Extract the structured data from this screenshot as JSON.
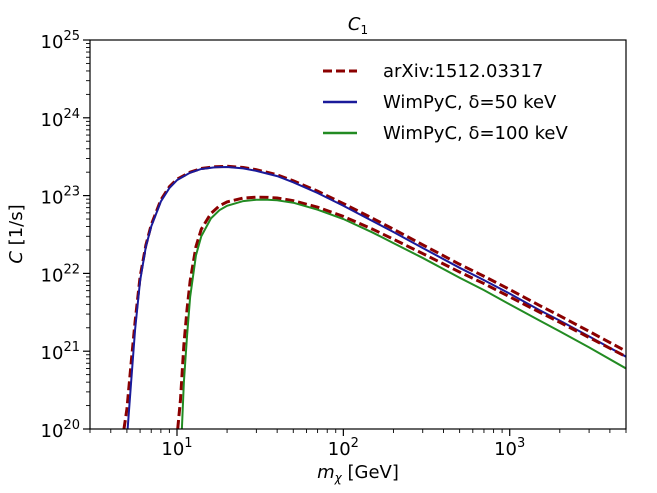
{
  "chart_data": {
    "type": "line",
    "title": "C",
    "title_sub": "1",
    "xlabel_main": "m",
    "xlabel_sub": "χ",
    "xlabel_unit": " [GeV]",
    "ylabel_main": "C",
    "ylabel_unit": " [1/s]",
    "xscale": "log",
    "yscale": "log",
    "xlim": [
      3,
      5000
    ],
    "ylim": [
      1e+20,
      1e+25
    ],
    "legend_position": "top-right",
    "xticks": [
      {
        "value": 10,
        "base": "10",
        "exp": "1"
      },
      {
        "value": 100,
        "base": "10",
        "exp": "2"
      },
      {
        "value": 1000,
        "base": "10",
        "exp": "3"
      }
    ],
    "yticks": [
      {
        "value": 1e+20,
        "base": "10",
        "exp": "20"
      },
      {
        "value": 1e+21,
        "base": "10",
        "exp": "21"
      },
      {
        "value": 1e+22,
        "base": "10",
        "exp": "22"
      },
      {
        "value": 1e+23,
        "base": "10",
        "exp": "23"
      },
      {
        "value": 1e+24,
        "base": "10",
        "exp": "24"
      },
      {
        "value": 1e+25,
        "base": "10",
        "exp": "25"
      }
    ],
    "series": [
      {
        "name": "arXiv:1512.03317 (δ=50 keV)",
        "legend": "arXiv:1512.03317",
        "color": "#8b0000",
        "style": "dashed",
        "x": [
          4.8,
          5.0,
          5.3,
          5.6,
          6.0,
          6.5,
          7.0,
          8.0,
          9.0,
          10,
          12,
          14,
          17,
          20,
          25,
          30,
          40,
          50,
          70,
          100,
          150,
          200,
          300,
          500,
          700,
          1000,
          1500,
          2000,
          3000,
          5000
        ],
        "y": [
          1e+20,
          1.8e+20,
          7e+20,
          2.4e+21,
          9e+21,
          2.3e+22,
          4.2e+22,
          8.8e+22,
          1.3e+23,
          1.62e+23,
          2e+23,
          2.23e+23,
          2.35e+23,
          2.38e+23,
          2.3e+23,
          2.15e+23,
          1.85e+23,
          1.55e+23,
          1.14e+23,
          7.9e+22,
          5.1e+22,
          3.7e+22,
          2.33e+22,
          1.31e+22,
          9.2e+21,
          6.2e+21,
          3.9e+21,
          2.85e+21,
          1.8e+21,
          1e+21
        ]
      },
      {
        "name": "WimPyC, δ=50 keV",
        "legend": "WimPyC, δ=50 keV",
        "color": "#1a1a9a",
        "style": "solid",
        "x": [
          5.05,
          5.3,
          5.6,
          6.0,
          6.5,
          7.0,
          8.0,
          9.0,
          10,
          12,
          14,
          17,
          20,
          25,
          30,
          40,
          50,
          70,
          100,
          150,
          200,
          300,
          500,
          700,
          1000,
          1500,
          2000,
          3000,
          5000
        ],
        "y": [
          1e+20,
          4e+20,
          1.9e+21,
          8e+21,
          2.2e+22,
          4e+22,
          8.4e+22,
          1.25e+23,
          1.58e+23,
          1.97e+23,
          2.2e+23,
          2.31e+23,
          2.33e+23,
          2.24e+23,
          2.08e+23,
          1.78e+23,
          1.48e+23,
          1.08e+23,
          7.4e+22,
          4.7e+22,
          3.4e+22,
          2.12e+22,
          1.18e+22,
          8.2e+21,
          5.5e+21,
          3.4e+21,
          2.47e+21,
          1.55e+21,
          8.5e+20
        ]
      },
      {
        "name": "arXiv:1512.03317 (δ=100 keV)",
        "legend": "",
        "color": "#8b0000",
        "style": "dashed",
        "x": [
          10.1,
          10.5,
          11.0,
          11.5,
          12.0,
          13.0,
          14.0,
          16.0,
          18.0,
          20,
          25,
          30,
          35,
          40,
          50,
          70,
          100,
          150,
          200,
          300,
          500,
          700,
          1000,
          1500,
          2000,
          3000,
          5000
        ],
        "y": [
          1e+20,
          2.4e+20,
          1.2e+21,
          3.5e+21,
          8e+21,
          2.2e+22,
          3.7e+22,
          5.9e+22,
          7.4e+22,
          8.3e+22,
          9.3e+22,
          9.55e+22,
          9.5e+22,
          9.3e+22,
          8.6e+22,
          7.1e+22,
          5.4e+22,
          3.7e+22,
          2.75e+22,
          1.8e+22,
          1.04e+22,
          7.4e+21,
          5e+21,
          3.2e+21,
          2.35e+21,
          1.5e+21,
          8.5e+20
        ]
      },
      {
        "name": "WimPyC, δ=100 keV",
        "legend": "WimPyC, δ=100 keV",
        "color": "#228b22",
        "style": "solid",
        "x": [
          10.7,
          11.0,
          11.5,
          12.0,
          13.0,
          14.0,
          16.0,
          18.0,
          20,
          25,
          30,
          35,
          40,
          50,
          70,
          100,
          150,
          200,
          300,
          500,
          700,
          1000,
          1500,
          2000,
          3000,
          5000
        ],
        "y": [
          1e+20,
          4e+20,
          1.6e+21,
          5e+21,
          1.7e+22,
          3e+22,
          5.1e+22,
          6.5e+22,
          7.4e+22,
          8.5e+22,
          8.85e+22,
          8.85e+22,
          8.7e+22,
          8.1e+22,
          6.6e+22,
          5e+22,
          3.35e+22,
          2.45e+22,
          1.58e+22,
          8.8e+21,
          6.1e+21,
          4e+21,
          2.5e+21,
          1.8e+21,
          1.12e+21,
          6e+20
        ]
      }
    ]
  }
}
